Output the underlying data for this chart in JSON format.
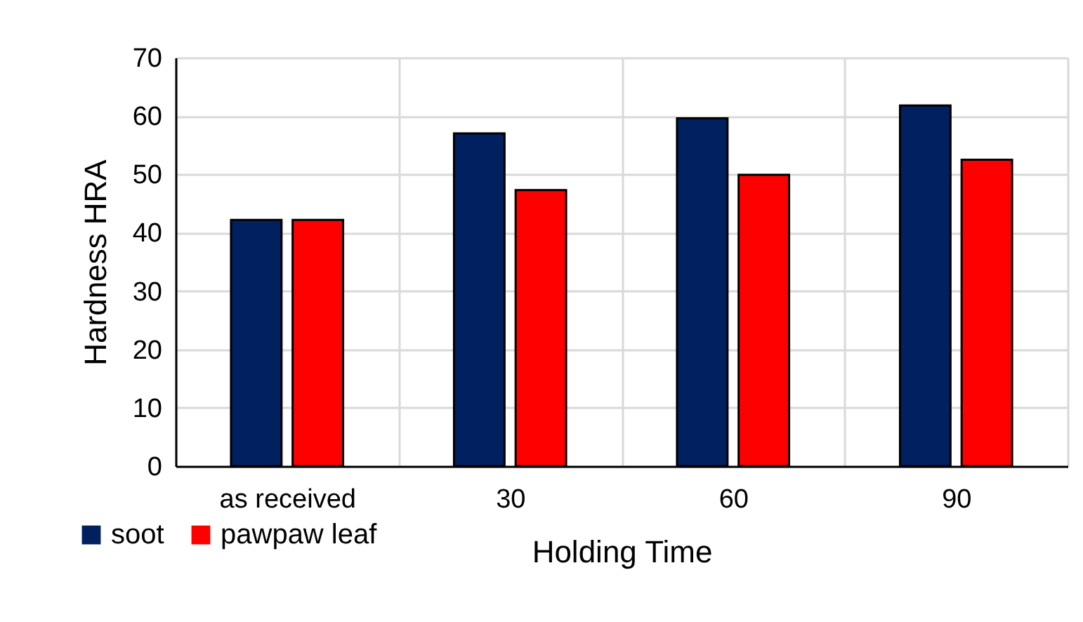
{
  "chart_data": {
    "type": "bar",
    "xlabel": "Holding Time",
    "ylabel": "Hardness HRA",
    "categories": [
      "as received",
      "30",
      "60",
      "90"
    ],
    "series": [
      {
        "name": "soot",
        "color": "#002060",
        "values": [
          42.2,
          57.0,
          59.6,
          61.8
        ]
      },
      {
        "name": "pawpaw leaf",
        "color": "#ff0000",
        "values": [
          42.2,
          47.3,
          49.9,
          52.5
        ]
      }
    ],
    "ylim": [
      0,
      70
    ],
    "yticks": [
      0,
      10,
      20,
      30,
      40,
      50,
      60,
      70
    ],
    "grid": true,
    "legend": "bottom left"
  }
}
